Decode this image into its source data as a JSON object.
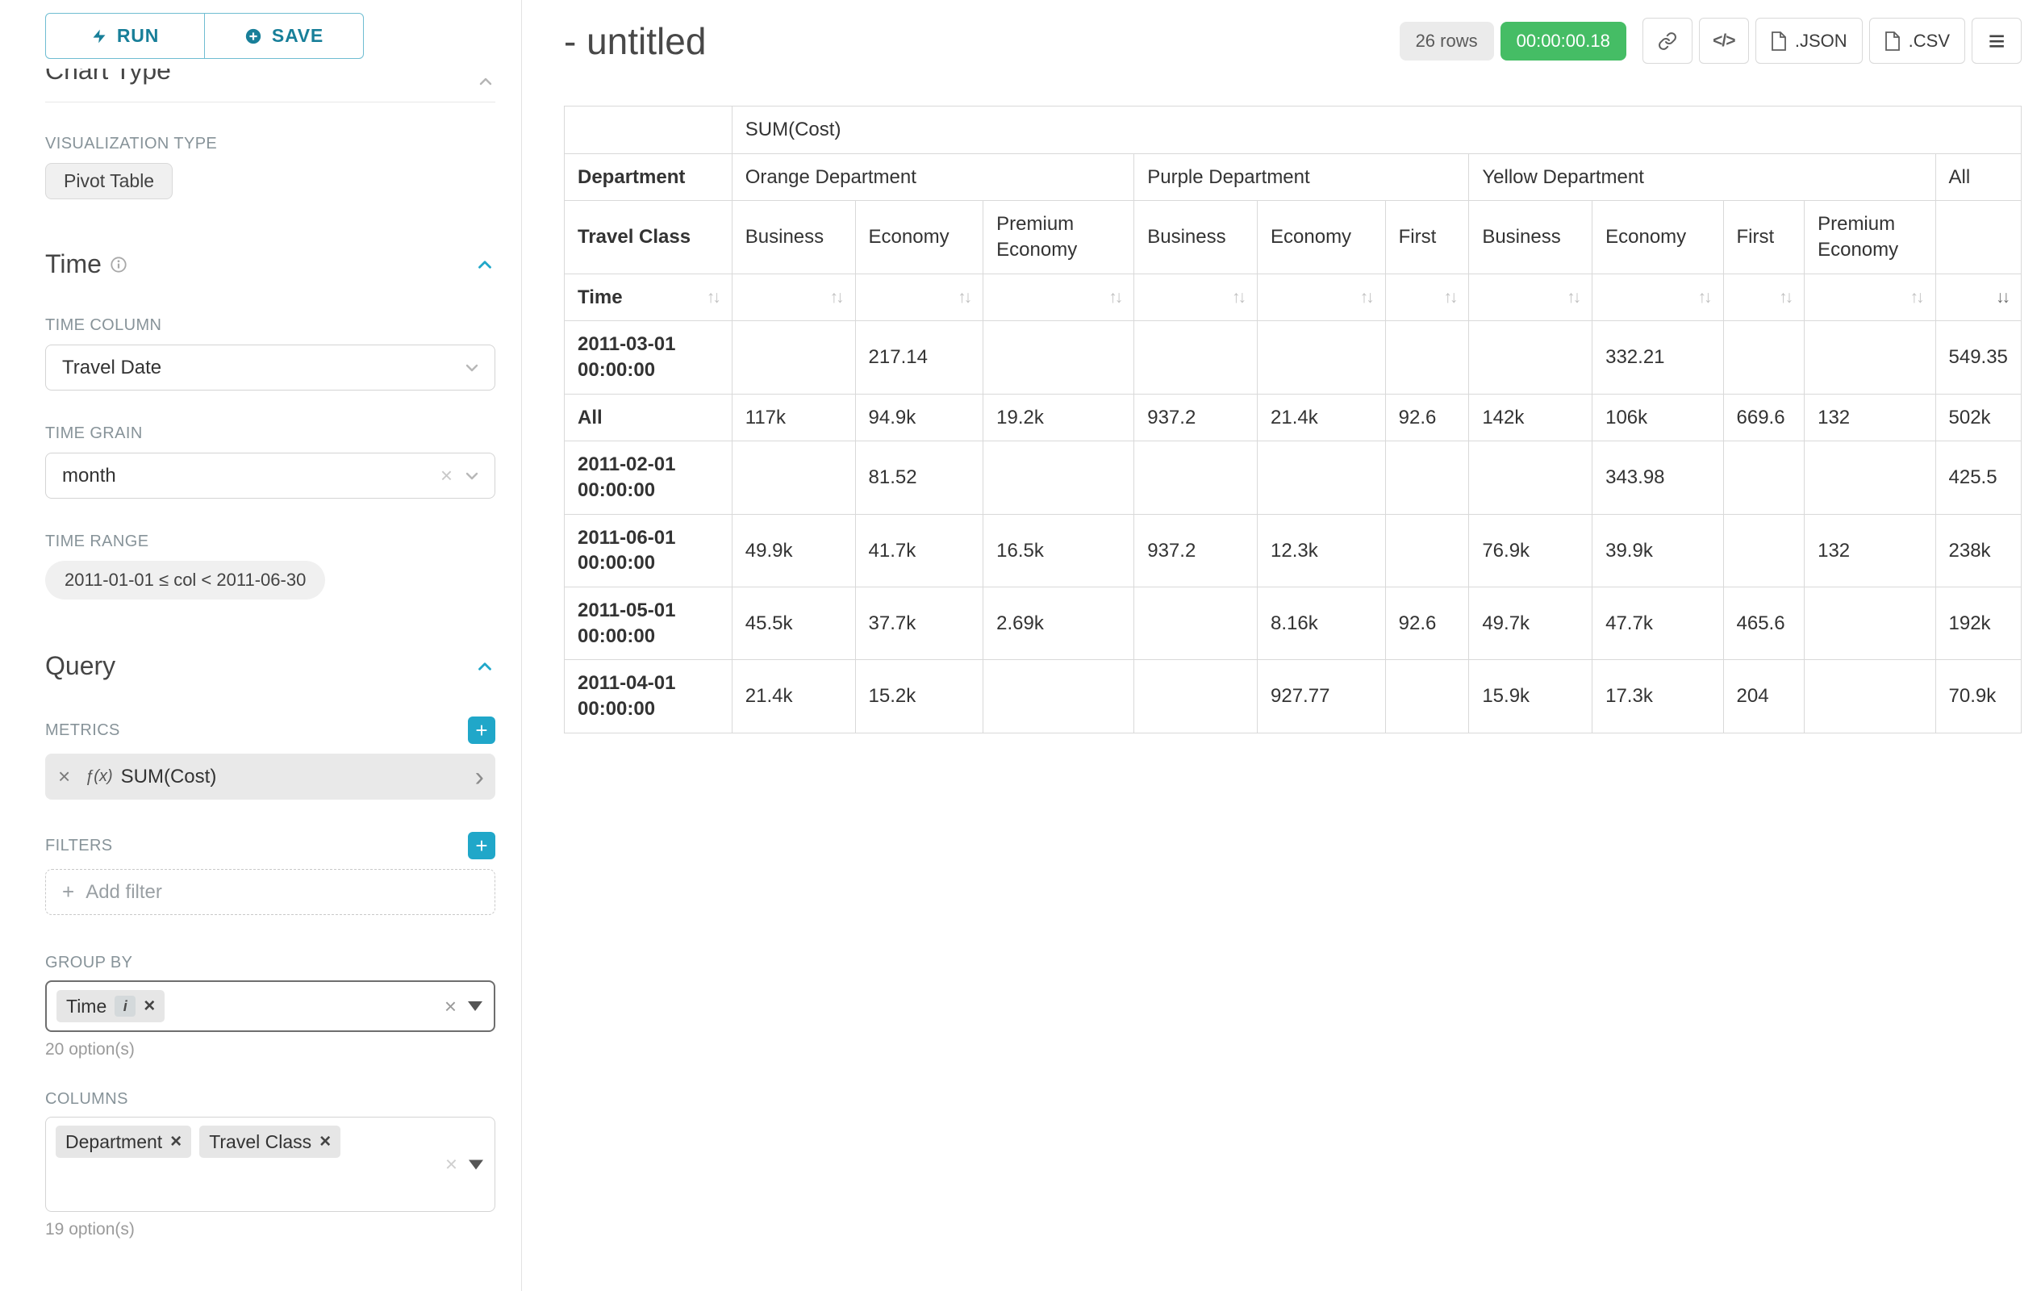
{
  "sidebar": {
    "run_label": "RUN",
    "save_label": "SAVE",
    "chart_type_heading": "Chart Type",
    "visualization_type_label": "VISUALIZATION TYPE",
    "visualization_type_value": "Pivot Table",
    "time_section": {
      "heading": "Time",
      "time_column_label": "TIME COLUMN",
      "time_column_value": "Travel Date",
      "time_grain_label": "TIME GRAIN",
      "time_grain_value": "month",
      "time_range_label": "TIME RANGE",
      "time_range_value": "2011-01-01 ≤ col < 2011-06-30"
    },
    "query_section": {
      "heading": "Query",
      "metrics_label": "METRICS",
      "metric_fx_prefix": "ƒ(x)",
      "metric_value": "SUM(Cost)",
      "filters_label": "FILTERS",
      "add_filter_label": "Add filter",
      "group_by_label": "GROUP BY",
      "group_by_tags": [
        "Time"
      ],
      "group_by_hint": "20 option(s)",
      "columns_label": "COLUMNS",
      "columns_tags": [
        "Department",
        "Travel Class"
      ],
      "columns_hint": "19 option(s)"
    }
  },
  "header": {
    "title": "- untitled",
    "rows_badge": "26 rows",
    "timer_badge": "00:00:00.18",
    "json_label": ".JSON",
    "csv_label": ".CSV"
  },
  "pivot": {
    "metric_header": "SUM(Cost)",
    "department_label": "Department",
    "travel_class_label": "Travel Class",
    "time_label": "Time",
    "all_label": "All",
    "departments": [
      {
        "name": "Orange Department",
        "classes": [
          "Business",
          "Economy",
          "Premium Economy"
        ]
      },
      {
        "name": "Purple Department",
        "classes": [
          "Business",
          "Economy",
          "First"
        ]
      },
      {
        "name": "Yellow Department",
        "classes": [
          "Business",
          "Economy",
          "First",
          "Premium Economy"
        ]
      }
    ],
    "rows": [
      {
        "label": "2011-03-01 00:00:00",
        "values": [
          "",
          "217.14",
          "",
          "",
          "",
          "",
          "",
          "332.21",
          "",
          "",
          "549.35"
        ]
      },
      {
        "label": "All",
        "values": [
          "117k",
          "94.9k",
          "19.2k",
          "937.2",
          "21.4k",
          "92.6",
          "142k",
          "106k",
          "669.6",
          "132",
          "502k"
        ]
      },
      {
        "label": "2011-02-01 00:00:00",
        "values": [
          "",
          "81.52",
          "",
          "",
          "",
          "",
          "",
          "343.98",
          "",
          "",
          "425.5"
        ]
      },
      {
        "label": "2011-06-01 00:00:00",
        "values": [
          "49.9k",
          "41.7k",
          "16.5k",
          "937.2",
          "12.3k",
          "",
          "76.9k",
          "39.9k",
          "",
          "132",
          "238k"
        ]
      },
      {
        "label": "2011-05-01 00:00:00",
        "values": [
          "45.5k",
          "37.7k",
          "2.69k",
          "",
          "8.16k",
          "92.6",
          "49.7k",
          "47.7k",
          "465.6",
          "",
          "192k"
        ]
      },
      {
        "label": "2011-04-01 00:00:00",
        "values": [
          "21.4k",
          "15.2k",
          "",
          "",
          "927.77",
          "",
          "15.9k",
          "17.3k",
          "204",
          "",
          "70.9k"
        ]
      }
    ]
  }
}
